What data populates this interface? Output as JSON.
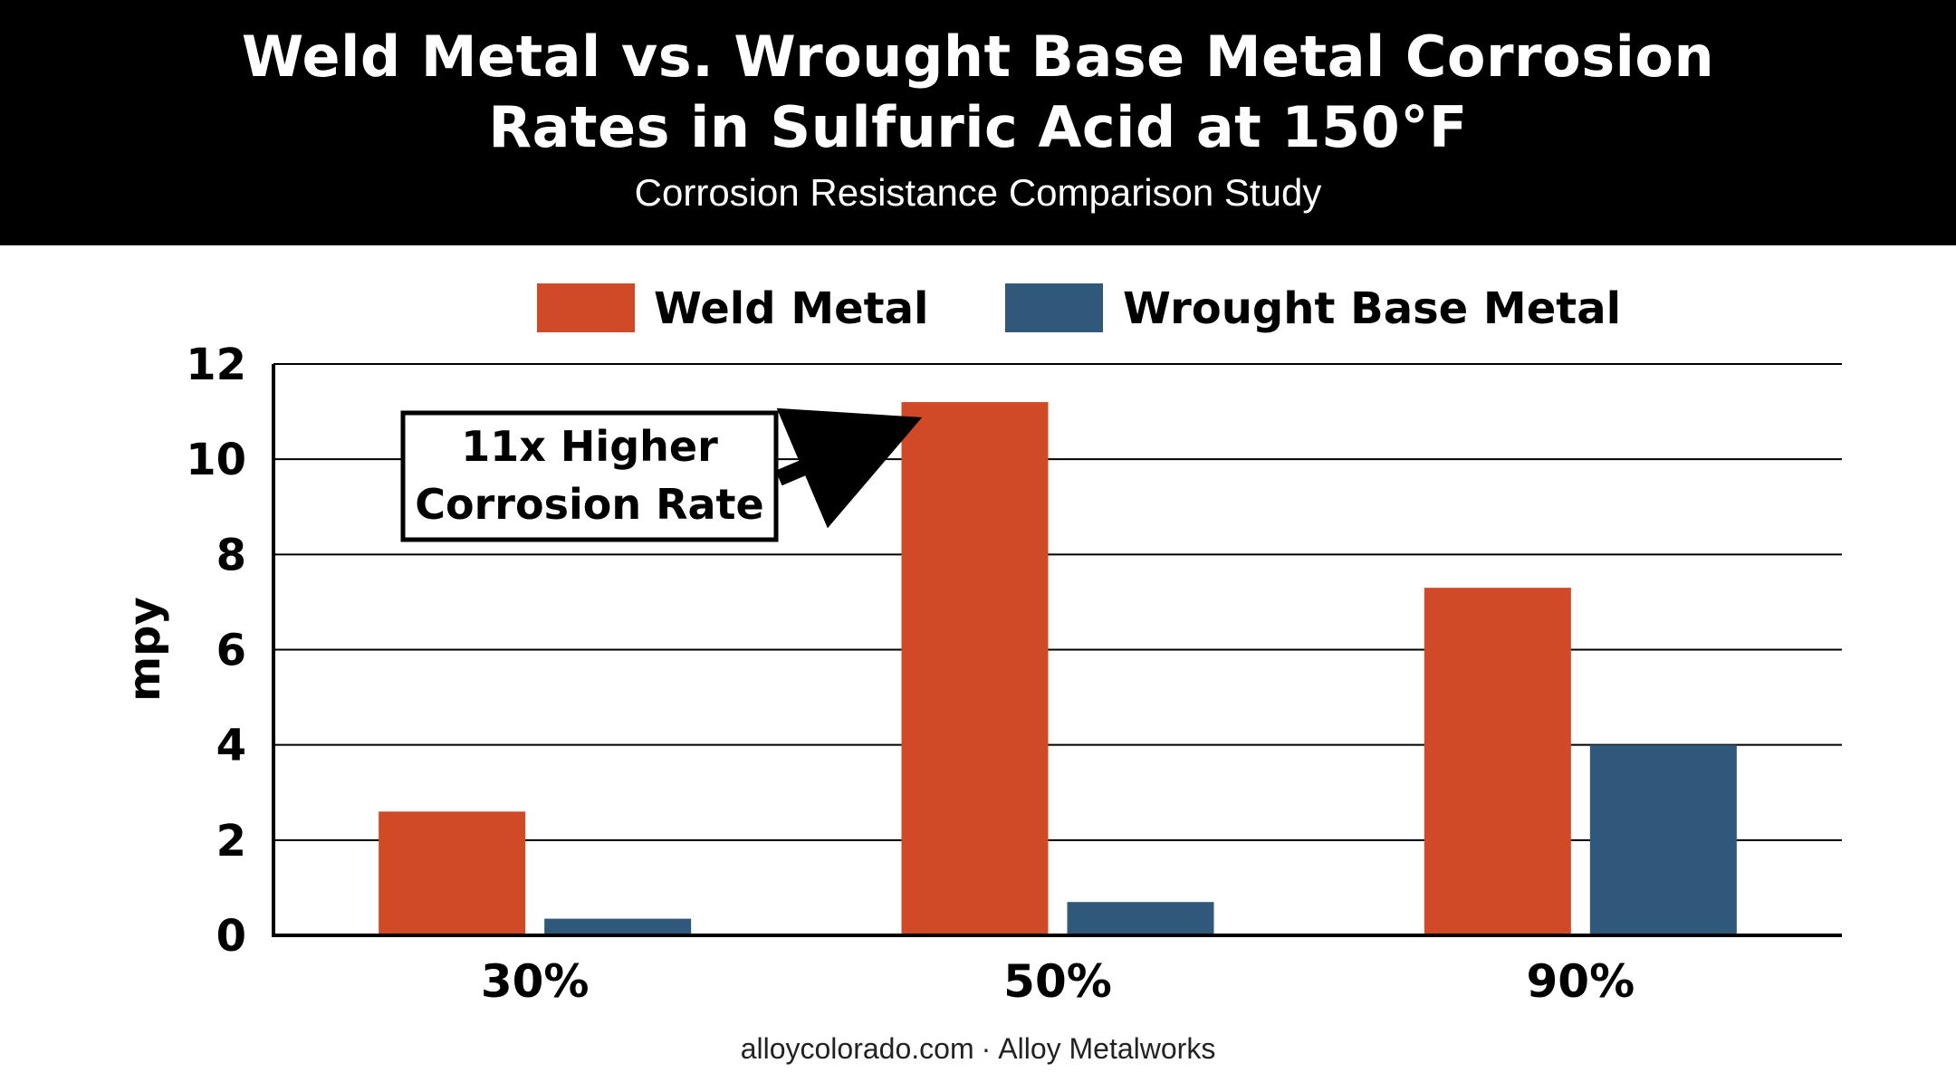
{
  "header": {
    "title_line1": "Weld Metal vs. Wrought Base Metal Corrosion",
    "title_line2": "Rates in Sulfuric Acid at 150°F",
    "subtitle": "Corrosion Resistance Comparison Study"
  },
  "chart_data": {
    "type": "bar",
    "categories": [
      "30%",
      "50%",
      "90%"
    ],
    "series": [
      {
        "name": "Weld Metal",
        "values": [
          2.6,
          11.2,
          7.3
        ],
        "color": "#d04a27"
      },
      {
        "name": "Wrought Base Metal",
        "values": [
          0.35,
          0.7,
          4.0
        ],
        "color": "#2f587a"
      }
    ],
    "ylabel": "mpy",
    "ylim": [
      0,
      12
    ],
    "yticks": [
      "0",
      "2",
      "4",
      "6",
      "8",
      "10",
      "12"
    ],
    "grid": true,
    "legend_position": "top-center",
    "annotation": {
      "line1": "11x Higher",
      "line2": "Corrosion Rate"
    }
  },
  "footer": {
    "site": "alloycolorado.com",
    "separator": "·",
    "company": "Alloy Metalworks"
  }
}
